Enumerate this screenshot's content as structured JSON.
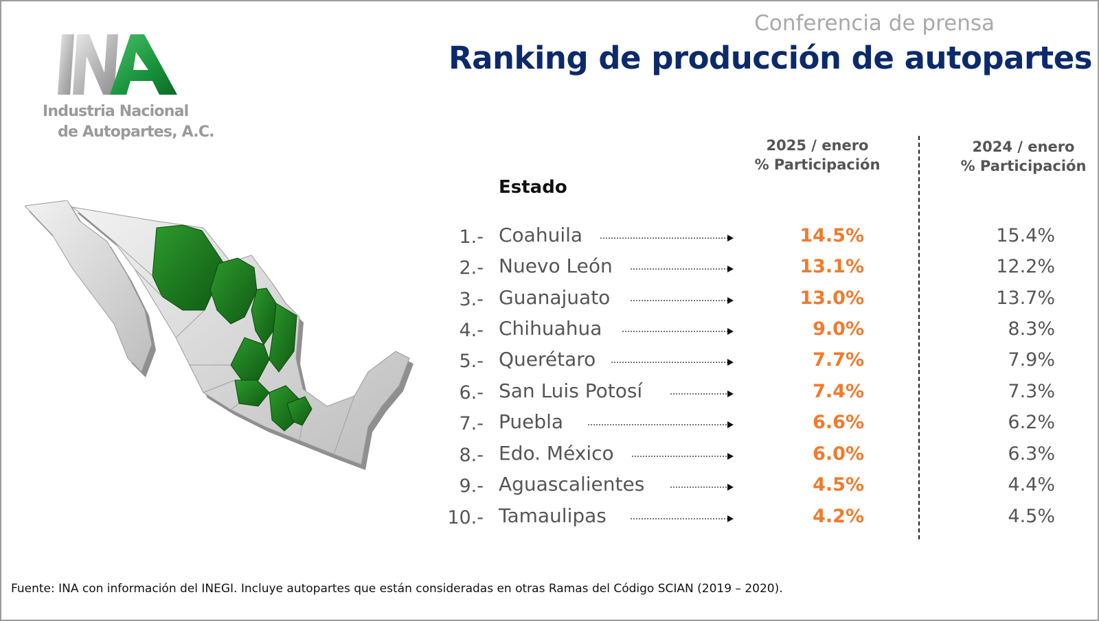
{
  "header": {
    "subtitle": "Conferencia de prensa",
    "title": "Ranking de producción de autopartes"
  },
  "logo": {
    "line1": "Industria Nacional",
    "line2": "de Autopartes, A.C.",
    "colors": {
      "green": "#1a9a3e",
      "gray": "#a8a8a8"
    }
  },
  "table": {
    "estado_label": "Estado",
    "col_2025": {
      "line1": "2025 / enero",
      "line2": "% Participación"
    },
    "col_2024": {
      "line1": "2024 / enero",
      "line2": "% Participación"
    },
    "rows": [
      {
        "rank": "1.-",
        "state": "Coahuila",
        "v2025": "14.5%",
        "v2024": "15.4%"
      },
      {
        "rank": "2.-",
        "state": "Nuevo León",
        "v2025": "13.1%",
        "v2024": "12.2%"
      },
      {
        "rank": "3.-",
        "state": "Guanajuato",
        "v2025": "13.0%",
        "v2024": "13.7%"
      },
      {
        "rank": "4.-",
        "state": "Chihuahua",
        "v2025": "9.0%",
        "v2024": "8.3%"
      },
      {
        "rank": "5.-",
        "state": "Querétaro",
        "v2025": "7.7%",
        "v2024": "7.9%"
      },
      {
        "rank": "6.-",
        "state": "San Luis Potosí",
        "v2025": "7.4%",
        "v2024": "7.3%"
      },
      {
        "rank": "7.-",
        "state": "Puebla",
        "v2025": "6.6%",
        "v2024": "6.2%"
      },
      {
        "rank": "8.-",
        "state": "Edo. México",
        "v2025": "6.0%",
        "v2024": "6.3%"
      },
      {
        "rank": "9.-",
        "state": "Aguascalientes",
        "v2025": "4.5%",
        "v2024": "4.4%"
      },
      {
        "rank": "10.-",
        "state": "Tamaulipas",
        "v2025": "4.2%",
        "v2024": "4.5%"
      }
    ]
  },
  "footer": {
    "source": "Fuente: INA con información del INEGI. Incluye autopartes que están consideradas en otras Ramas del Código SCIAN (2019 – 2020)."
  },
  "colors": {
    "title": "#0c2a6b",
    "highlight": "#f07b2d",
    "map_green": "#1e7d1e",
    "map_gray": "#d8d8d8"
  }
}
